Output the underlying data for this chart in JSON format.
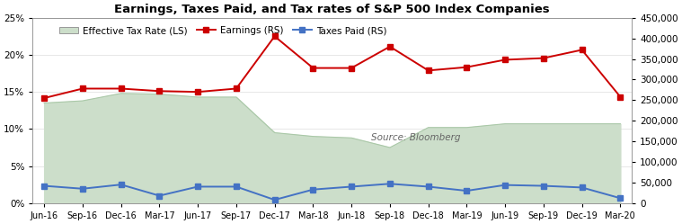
{
  "title": "Earnings, Taxes Paid, and Tax rates of S&P 500 Index Companies",
  "x_labels": [
    "Jun-16",
    "Sep-16",
    "Dec-16",
    "Mar-17",
    "Jun-17",
    "Sep-17",
    "Dec-17",
    "Mar-18",
    "Jun-18",
    "Sep-18",
    "Dec-18",
    "Mar-19",
    "Jun-19",
    "Sep-19",
    "Dec-19",
    "Mar-20"
  ],
  "effective_tax_rate": [
    0.135,
    0.138,
    0.148,
    0.147,
    0.143,
    0.143,
    0.095,
    0.09,
    0.088,
    0.075,
    0.102,
    0.102,
    0.107,
    0.107,
    0.107,
    0.107
  ],
  "earnings_values": [
    255000,
    278000,
    278000,
    272000,
    270000,
    278000,
    405000,
    328000,
    328000,
    380000,
    322000,
    330000,
    348000,
    352000,
    372000,
    258000
  ],
  "taxes_values": [
    42000,
    35000,
    45000,
    18000,
    40000,
    40000,
    8000,
    33000,
    40000,
    47000,
    40000,
    30000,
    44000,
    42000,
    38000,
    12000
  ],
  "tax_rate_color": "#ccdeca",
  "tax_rate_line_color": "#aac8a8",
  "earnings_color": "#cc0000",
  "taxes_color": "#4472c4",
  "background_color": "#ffffff",
  "source_text": "Source: Bloomberg",
  "ylim_left": [
    0.0,
    0.25
  ],
  "ylim_right": [
    0,
    450000
  ],
  "yticks_left": [
    0.0,
    0.05,
    0.1,
    0.15,
    0.2,
    0.25
  ],
  "yticks_right": [
    0,
    50000,
    100000,
    150000,
    200000,
    250000,
    300000,
    350000,
    400000,
    450000
  ],
  "title_fontsize": 9.5,
  "legend_fontsize": 7.5,
  "tick_fontsize": 7.5,
  "xtick_fontsize": 7.0
}
